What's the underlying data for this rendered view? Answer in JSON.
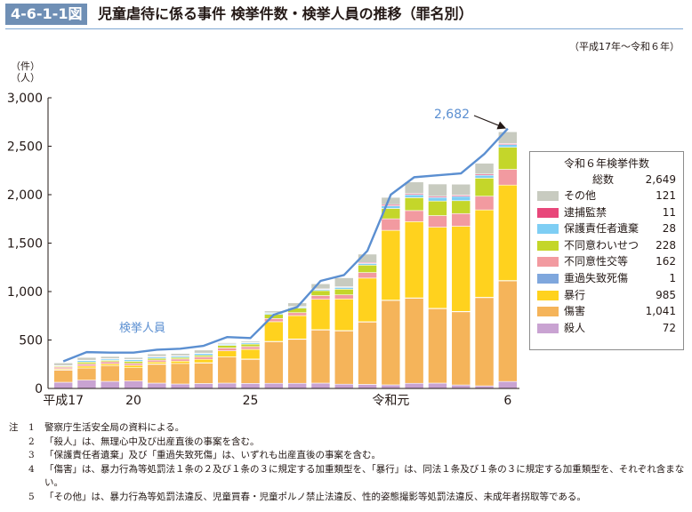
{
  "header": {
    "figure_number": "4-6-1-1図",
    "title": "児童虐待に係る事件 検挙件数・検挙人員の推移（罪名別）",
    "period": "（平成17年～令和６年）"
  },
  "axis_unit_lines": [
    "（件）",
    "（人）"
  ],
  "chart_data": {
    "type": "bar",
    "stacked": true,
    "title": "児童虐待に係る事件 検挙件数・検挙人員の推移（罪名別）",
    "xlabel": "",
    "ylabel": "（件）（人）",
    "ylim": [
      0,
      3000
    ],
    "yticks": [
      0,
      500,
      1000,
      1500,
      2000,
      2500,
      3000
    ],
    "ytick_labels": [
      "0",
      "500",
      "1,000",
      "1,500",
      "2,000",
      "2,500",
      "3,000"
    ],
    "categories": [
      "H17",
      "H18",
      "H19",
      "H20",
      "H21",
      "H22",
      "H23",
      "H24",
      "H25",
      "H26",
      "H27",
      "H28",
      "H29",
      "H30",
      "R1",
      "R2",
      "R3",
      "R4",
      "R5",
      "R6"
    ],
    "xtick_labels": [
      {
        "index": 0,
        "label": "平成17"
      },
      {
        "index": 3,
        "label": "20"
      },
      {
        "index": 8,
        "label": "25"
      },
      {
        "index": 14,
        "label": "令和元"
      },
      {
        "index": 19,
        "label": "6"
      }
    ],
    "series": [
      {
        "name": "殺人",
        "color": "#c9a3d2",
        "values": [
          64,
          86,
          73,
          77,
          55,
          46,
          51,
          55,
          52,
          53,
          53,
          55,
          44,
          42,
          37,
          53,
          55,
          36,
          27,
          72
        ]
      },
      {
        "name": "傷害",
        "color": "#f5b45a",
        "values": [
          128,
          125,
          163,
          137,
          197,
          212,
          214,
          271,
          251,
          432,
          457,
          551,
          553,
          646,
          874,
          881,
          771,
          758,
          913,
          1041
        ]
      },
      {
        "name": "重過失致死傷",
        "color": "#7fa7dd",
        "values": [
          1,
          0,
          0,
          0,
          1,
          0,
          1,
          0,
          1,
          1,
          1,
          1,
          1,
          1,
          1,
          1,
          1,
          1,
          1,
          1
        ]
      },
      {
        "name": "暴行",
        "color": "#ffd21e",
        "values": [
          10,
          20,
          18,
          25,
          20,
          24,
          35,
          62,
          100,
          203,
          241,
          313,
          326,
          450,
          720,
          787,
          837,
          879,
          902,
          985
        ]
      },
      {
        "name": "不同意性交等",
        "color": "#f29aa0",
        "values": [
          17,
          22,
          22,
          20,
          20,
          22,
          25,
          30,
          28,
          33,
          30,
          38,
          42,
          57,
          119,
          114,
          120,
          131,
          141,
          162
        ]
      },
      {
        "name": "不同意わいせつ",
        "color": "#c4d62a",
        "values": [
          10,
          19,
          14,
          21,
          17,
          16,
          16,
          27,
          26,
          42,
          48,
          52,
          59,
          77,
          107,
          133,
          150,
          133,
          187,
          228
        ]
      },
      {
        "name": "保護責任者遺棄",
        "color": "#7ecef4",
        "values": [
          6,
          16,
          14,
          16,
          15,
          14,
          19,
          11,
          15,
          13,
          10,
          12,
          18,
          17,
          27,
          31,
          37,
          45,
          30,
          28
        ]
      },
      {
        "name": "逮捕監禁",
        "color": "#e8477a",
        "values": [
          1,
          4,
          4,
          5,
          6,
          5,
          4,
          4,
          3,
          4,
          6,
          6,
          7,
          10,
          13,
          11,
          12,
          12,
          12,
          11
        ]
      },
      {
        "name": "その他",
        "color": "#c8cbc0",
        "values": [
          26,
          28,
          22,
          19,
          25,
          22,
          31,
          12,
          12,
          19,
          37,
          52,
          92,
          86,
          74,
          120,
          127,
          113,
          111,
          121
        ]
      }
    ],
    "line_series": {
      "name": "検挙人員",
      "color": "#5b8fd1",
      "values": [
        280,
        375,
        370,
        370,
        400,
        410,
        440,
        530,
        520,
        760,
        840,
        1110,
        1170,
        1420,
        2000,
        2180,
        2200,
        2220,
        2420,
        2682
      ],
      "annotation": "2,682"
    },
    "legend": {
      "title": "令和６年検挙件数",
      "total_label": "総数",
      "total_value": "2,649",
      "placement": "right",
      "items": [
        {
          "label": "その他",
          "value": "121",
          "color": "#c8cbc0"
        },
        {
          "label": "逮捕監禁",
          "value": "11",
          "color": "#e8477a"
        },
        {
          "label": "保護責任者遺棄",
          "value": "28",
          "color": "#7ecef4"
        },
        {
          "label": "不同意わいせつ",
          "value": "228",
          "color": "#c4d62a"
        },
        {
          "label": "不同意性交等",
          "value": "162",
          "color": "#f29aa0"
        },
        {
          "label": "重過失致死傷",
          "value": "1",
          "color": "#7fa7dd"
        },
        {
          "label": "暴行",
          "value": "985",
          "color": "#ffd21e"
        },
        {
          "label": "傷害",
          "value": "1,041",
          "color": "#f5b45a"
        },
        {
          "label": "殺人",
          "value": "72",
          "color": "#c9a3d2"
        }
      ]
    }
  },
  "notes": {
    "head": "注",
    "items": [
      {
        "num": "1",
        "text": "警察庁生活安全局の資料による。"
      },
      {
        "num": "2",
        "text": "「殺人」は、無理心中及び出産直後の事案を含む。"
      },
      {
        "num": "3",
        "text": "「保護責任者遺棄」及び「重過失致死傷」は、いずれも出産直後の事案を含む。"
      },
      {
        "num": "4",
        "text": "「傷害」は、暴力行為等処罰法１条の２及び１条の３に規定する加重類型を、「暴行」は、同法１条及び１条の３に規定する加重類型を、それぞれ含まない。"
      },
      {
        "num": "5",
        "text": "「その他」は、暴力行為等処罰法違反、児童買春・児童ポルノ禁止法違反、性的姿態撮影等処罰法違反、未成年者拐取等である。"
      }
    ]
  }
}
